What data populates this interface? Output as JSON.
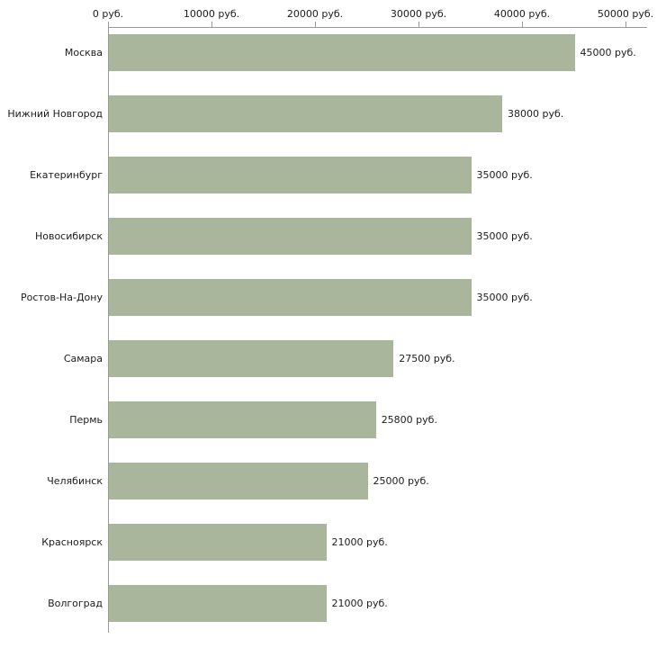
{
  "chart_data": {
    "type": "bar",
    "orientation": "horizontal",
    "categories": [
      "Москва",
      "Нижний Новгород",
      "Екатеринбург",
      "Новосибирск",
      "Ростов-На-Дону",
      "Самара",
      "Пермь",
      "Челябинск",
      "Красноярск",
      "Волгоград"
    ],
    "values": [
      45000,
      38000,
      35000,
      35000,
      35000,
      27500,
      25800,
      25000,
      21000,
      21000
    ],
    "value_labels": [
      "45000 руб.",
      "38000 руб.",
      "35000 руб.",
      "35000 руб.",
      "35000 руб.",
      "27500 руб.",
      "25800 руб.",
      "25000 руб.",
      "21000 руб.",
      "21000 руб."
    ],
    "x_ticks": [
      "0 руб.",
      "10000 руб.",
      "20000 руб.",
      "30000 руб.",
      "40000 руб.",
      "50000 руб."
    ],
    "x_tick_values": [
      0,
      10000,
      20000,
      30000,
      40000,
      50000
    ],
    "xlim": [
      0,
      50000
    ],
    "title": "",
    "xlabel": "",
    "ylabel": "",
    "grid": false,
    "legend": "none",
    "bar_color": "#aab69b",
    "axis_color": "#9a9a9a",
    "text_color": "#1c1c1c",
    "background_color": "#ffffff"
  }
}
